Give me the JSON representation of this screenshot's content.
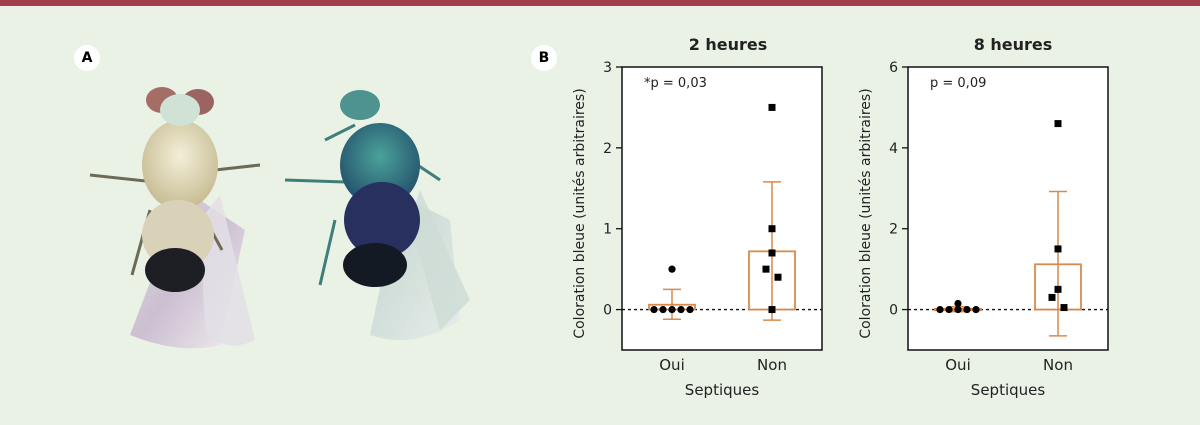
{
  "panels": {
    "a_label": "A",
    "b_label": "B"
  },
  "colors": {
    "background": "#eaf2e6",
    "top_bar": "#a23d4c",
    "bar_outline": "#d98a4b",
    "points": "#000000"
  },
  "chart_data": [
    {
      "type": "bar",
      "title": "2 heures",
      "annotation": "*p = 0,03",
      "xlabel": "Septiques",
      "ylabel": "Coloration bleue (unités arbitraires)",
      "categories": [
        "Oui",
        "Non"
      ],
      "ylim": [
        -0.5,
        3
      ],
      "yticks": [
        "0",
        "1",
        "2",
        "3"
      ],
      "bars": [
        {
          "category": "Oui",
          "mean": 0.06,
          "err_low": -0.12,
          "err_high": 0.25,
          "points": [
            0,
            0,
            0,
            0,
            0,
            0.5
          ],
          "marker": "circle"
        },
        {
          "category": "Non",
          "mean": 0.72,
          "err_low": -0.13,
          "err_high": 1.58,
          "points": [
            2.5,
            1.0,
            0.7,
            0.5,
            0.4,
            0.0
          ],
          "marker": "square"
        }
      ]
    },
    {
      "type": "bar",
      "title": "8 heures",
      "annotation": "p = 0,09",
      "xlabel": "Septiques",
      "ylabel": "Coloration bleue (unités arbitraires)",
      "categories": [
        "Oui",
        "Non"
      ],
      "ylim": [
        -1,
        6
      ],
      "yticks": [
        "0",
        "2",
        "4",
        "6"
      ],
      "bars": [
        {
          "category": "Oui",
          "mean": 0.02,
          "err_low": -0.05,
          "err_high": 0.07,
          "points": [
            0,
            0,
            0,
            0,
            0,
            0.15
          ],
          "marker": "circle"
        },
        {
          "category": "Non",
          "mean": 1.12,
          "err_low": -0.65,
          "err_high": 2.92,
          "points": [
            4.6,
            1.5,
            0.5,
            0.3,
            0.05
          ],
          "marker": "square"
        }
      ]
    }
  ]
}
